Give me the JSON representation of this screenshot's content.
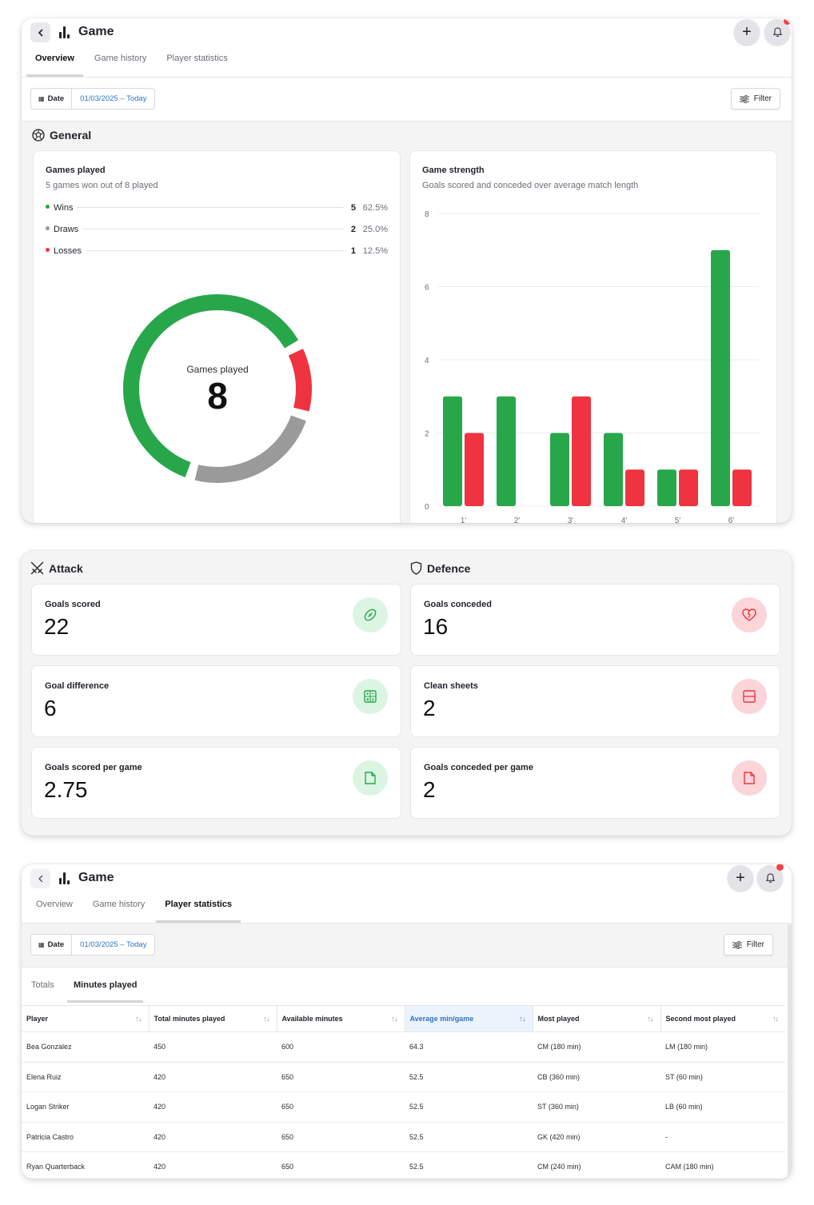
{
  "overview": {
    "app_title": "Game",
    "tabs": [
      "Overview",
      "Game history",
      "Player statistics"
    ],
    "active_tab": "Overview",
    "date_label": "Date",
    "date_value": "01/03/2025 – Today",
    "filter_label": "Filter",
    "general_title": "General",
    "games_played_card": {
      "title": "Games played",
      "subtitle": "5 games won out of 8 played",
      "rows": [
        {
          "label": "Wins",
          "count": "5",
          "pct": "62.5%",
          "color": "#27a74a"
        },
        {
          "label": "Draws",
          "count": "2",
          "pct": "25.0%",
          "color": "#9a9a9a"
        },
        {
          "label": "Losses",
          "count": "1",
          "pct": "12.5%",
          "color": "#ef3340"
        }
      ],
      "donut_label": "Games played",
      "donut_value": "8"
    },
    "game_strength_card": {
      "title": "Game strength",
      "subtitle": "Goals scored and conceded over average match length"
    }
  },
  "chart_data": {
    "type": "bar",
    "title": "Game strength",
    "subtitle": "Goals scored and conceded over average match length",
    "categories": [
      "1'",
      "2'",
      "3'",
      "4'",
      "5'",
      "6'"
    ],
    "series": [
      {
        "values": [
          3,
          3,
          2,
          2,
          1,
          7
        ],
        "color": "#27a74a"
      },
      {
        "values": [
          2,
          0,
          3,
          1,
          1,
          1
        ],
        "color": "#ef3340"
      }
    ],
    "yticks": [
      "0",
      "2",
      "4",
      "6",
      "8"
    ],
    "ylim": [
      0,
      8
    ],
    "grid": true
  },
  "stats": {
    "attack_title": "Attack",
    "defence_title": "Defence",
    "attack": [
      {
        "label": "Goals scored",
        "value": "22",
        "icon": "ball-icon"
      },
      {
        "label": "Goal difference",
        "value": "6",
        "icon": "calculator-icon"
      },
      {
        "label": "Goals scored per game",
        "value": "2.75",
        "icon": "document-icon"
      }
    ],
    "defence": [
      {
        "label": "Goals conceded",
        "value": "16",
        "icon": "broken-heart-icon"
      },
      {
        "label": "Clean sheets",
        "value": "2",
        "icon": "sheet-icon"
      },
      {
        "label": "Goals conceded per game",
        "value": "2",
        "icon": "document-icon"
      }
    ],
    "colors": {
      "attack_icon": "#27a74a",
      "defence_icon": "#ef3340"
    }
  },
  "player_stats": {
    "app_title": "Game",
    "tabs": [
      "Overview",
      "Game history",
      "Player statistics"
    ],
    "active_tab": "Player statistics",
    "date_label": "Date",
    "date_value": "01/03/2025 – Today",
    "filter_label": "Filter",
    "subtabs": [
      "Totals",
      "Minutes played"
    ],
    "active_subtab": "Minutes played",
    "columns": [
      "Player",
      "Total minutes played",
      "Available minutes",
      "Average min/game",
      "Most played",
      "Second most played"
    ],
    "sorted_column": "Average min/game",
    "sort_glyph": "↑↓",
    "rows": [
      [
        "Bea Gonzalez",
        "450",
        "600",
        "64.3",
        "CM (180 min)",
        "LM (180 min)"
      ],
      [
        "Elena Ruiz",
        "420",
        "650",
        "52.5",
        "CB (360 min)",
        "ST (60 min)"
      ],
      [
        "Logan Striker",
        "420",
        "650",
        "52.5",
        "ST (360 min)",
        "LB (60 min)"
      ],
      [
        "Patricia Castro",
        "420",
        "650",
        "52.5",
        "GK (420 min)",
        "-"
      ],
      [
        "Ryan Quarterback",
        "420",
        "650",
        "52.5",
        "CM (240 min)",
        "CAM (180 min)"
      ]
    ]
  }
}
